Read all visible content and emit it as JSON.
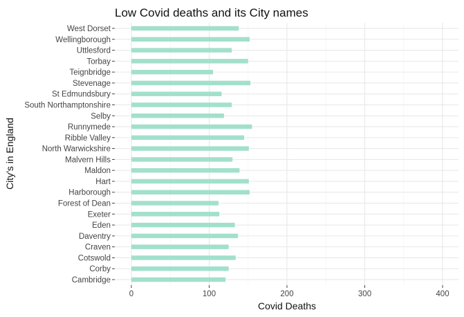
{
  "chart_data": {
    "type": "bar",
    "orientation": "horizontal",
    "title": "Low Covid deaths and its City names",
    "xlabel": "Covid Deaths",
    "ylabel": "City's in England",
    "xlim": [
      -15,
      415
    ],
    "xticks": [
      0,
      100,
      200,
      300,
      400
    ],
    "grid": true,
    "legend": "none",
    "bar_color": "#a2e0cc",
    "categories": [
      "West Dorset",
      "Wellingborough",
      "Uttlesford",
      "Torbay",
      "Teignbridge",
      "Stevenage",
      "St Edmundsbury",
      "South Northamptonshire",
      "Selby",
      "Runnymede",
      "Ribble Valley",
      "North Warwickshire",
      "Malvern Hills",
      "Maldon",
      "Hart",
      "Harborough",
      "Forest of Dean",
      "Exeter",
      "Eden",
      "Daventry",
      "Craven",
      "Cotswold",
      "Corby",
      "Cambridge"
    ],
    "values": [
      138,
      152,
      129,
      150,
      105,
      153,
      116,
      129,
      119,
      155,
      145,
      151,
      130,
      139,
      151,
      152,
      112,
      113,
      133,
      137,
      125,
      134,
      125,
      121
    ]
  }
}
